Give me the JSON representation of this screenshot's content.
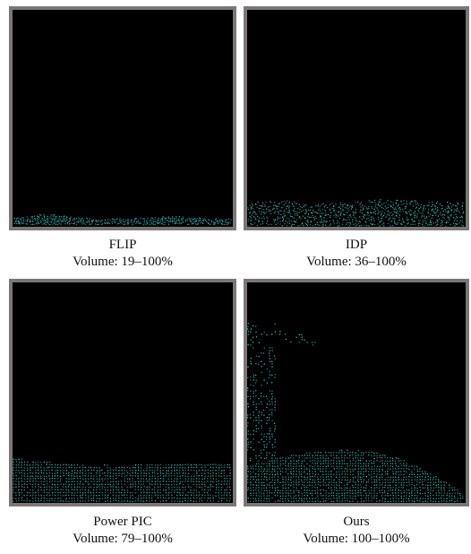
{
  "figure": {
    "background_color": "#ffffff",
    "frame_color": "#7c7676",
    "particle_color": "#39c4c1",
    "panels": [
      {
        "id": "flip",
        "method": "FLIP",
        "volume": "Volume: 19–100%"
      },
      {
        "id": "idp",
        "method": "IDP",
        "volume": "Volume: 36–100%"
      },
      {
        "id": "power",
        "method": "Power PIC",
        "volume": "Volume: 79–100%"
      },
      {
        "id": "ours",
        "method": "Ours",
        "volume": "Volume: 100–100%"
      }
    ]
  }
}
